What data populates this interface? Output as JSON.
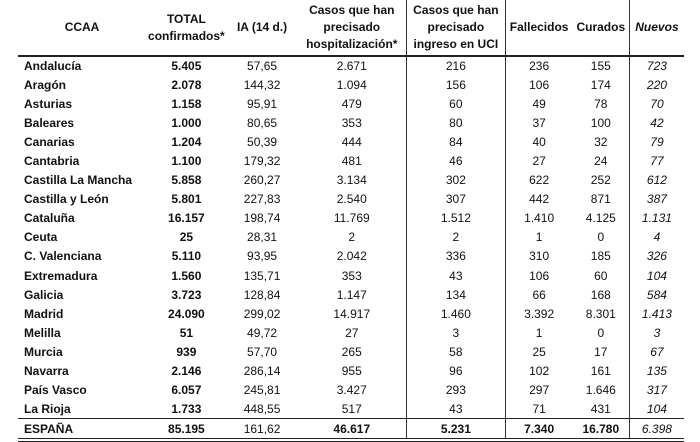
{
  "headers": [
    "CCAA",
    "TOTAL confirmados*",
    "IA (14 d.)",
    "Casos que han precisado hospitalización*",
    "Casos que han precisado ingreso en UCI",
    "Fallecidos",
    "Curados",
    "Nuevos"
  ],
  "rows": [
    [
      "Andalucía",
      "5.405",
      "57,65",
      "2.671",
      "216",
      "236",
      "155",
      "723"
    ],
    [
      "Aragón",
      "2.078",
      "144,32",
      "1.094",
      "156",
      "106",
      "174",
      "220"
    ],
    [
      "Asturias",
      "1.158",
      "95,91",
      "479",
      "60",
      "49",
      "78",
      "70"
    ],
    [
      "Baleares",
      "1.000",
      "80,65",
      "353",
      "80",
      "37",
      "100",
      "42"
    ],
    [
      "Canarias",
      "1.204",
      "50,39",
      "444",
      "84",
      "40",
      "32",
      "79"
    ],
    [
      "Cantabria",
      "1.100",
      "179,32",
      "481",
      "46",
      "27",
      "24",
      "77"
    ],
    [
      "Castilla La Mancha",
      "5.858",
      "260,27",
      "3.134",
      "302",
      "622",
      "252",
      "612"
    ],
    [
      "Castilla y León",
      "5.801",
      "227,83",
      "2.540",
      "307",
      "442",
      "871",
      "387"
    ],
    [
      "Cataluña",
      "16.157",
      "198,74",
      "11.769",
      "1.512",
      "1.410",
      "4.125",
      "1.131"
    ],
    [
      "Ceuta",
      "25",
      "28,31",
      "2",
      "2",
      "1",
      "0",
      "4"
    ],
    [
      "C. Valenciana",
      "5.110",
      "93,95",
      "2.042",
      "336",
      "310",
      "185",
      "326"
    ],
    [
      "Extremadura",
      "1.560",
      "135,71",
      "353",
      "43",
      "106",
      "60",
      "104"
    ],
    [
      "Galicia",
      "3.723",
      "128,84",
      "1.147",
      "134",
      "66",
      "168",
      "584"
    ],
    [
      "Madrid",
      "24.090",
      "299,02",
      "14.917",
      "1.460",
      "3.392",
      "8.301",
      "1.413"
    ],
    [
      "Melilla",
      "51",
      "49,72",
      "27",
      "3",
      "1",
      "0",
      "3"
    ],
    [
      "Murcia",
      "939",
      "57,70",
      "265",
      "58",
      "25",
      "17",
      "67"
    ],
    [
      "Navarra",
      "2.146",
      "286,14",
      "955",
      "96",
      "102",
      "161",
      "135"
    ],
    [
      "País Vasco",
      "6.057",
      "245,81",
      "3.427",
      "293",
      "297",
      "1.646",
      "317"
    ],
    [
      "La Rioja",
      "1.733",
      "448,55",
      "517",
      "43",
      "71",
      "431",
      "104"
    ]
  ],
  "total": [
    "ESPAÑA",
    "85.195",
    "161,62",
    "46.617",
    "5.231",
    "7.340",
    "16.780",
    "6.398"
  ]
}
